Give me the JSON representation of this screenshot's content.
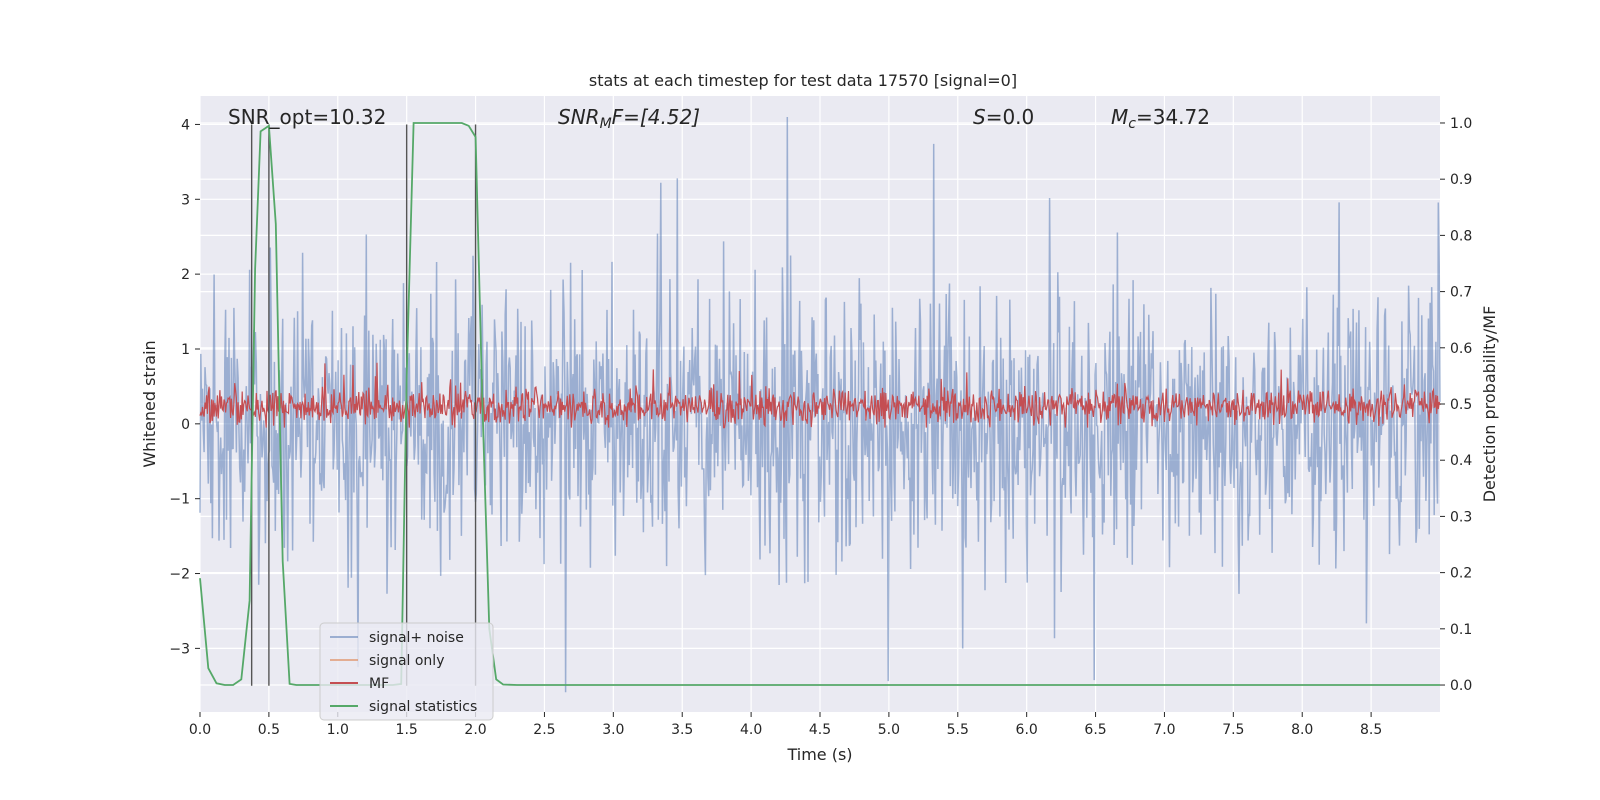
{
  "chart_data": {
    "type": "line",
    "title": "stats at each timestep for test data 17570 [signal=0]",
    "xlabel": "Time (s)",
    "ylabel": "Whitened strain",
    "y2label": "Detection probability/MF",
    "xlim": [
      0,
      9.0
    ],
    "ylim": [
      -3.85,
      4.38
    ],
    "y2lim": [
      -0.048,
      1.048
    ],
    "xticks": [
      "0.0",
      "0.5",
      "1.0",
      "1.5",
      "2.0",
      "2.5",
      "3.0",
      "3.5",
      "4.0",
      "4.5",
      "5.0",
      "5.5",
      "6.0",
      "6.5",
      "7.0",
      "7.5",
      "8.0",
      "8.5"
    ],
    "xtick_values": [
      0,
      0.5,
      1,
      1.5,
      2,
      2.5,
      3,
      3.5,
      4,
      4.5,
      5,
      5.5,
      6,
      6.5,
      7,
      7.5,
      8,
      8.5
    ],
    "yticks": [
      "4",
      "3",
      "2",
      "1",
      "0",
      "−1",
      "−2",
      "−3"
    ],
    "ytick_values": [
      4,
      3,
      2,
      1,
      0,
      -1,
      -2,
      -3
    ],
    "y2ticks": [
      "1.0",
      "0.9",
      "0.8",
      "0.7",
      "0.6",
      "0.5",
      "0.4",
      "0.3",
      "0.2",
      "0.1",
      "0.0"
    ],
    "y2tick_values": [
      1.0,
      0.9,
      0.8,
      0.7,
      0.6,
      0.5,
      0.4,
      0.3,
      0.2,
      0.1,
      0.0
    ],
    "annotations": {
      "snr_opt": "SNR_opt=10.32",
      "snr_mf_main": "SNR",
      "snr_mf_sub": "M",
      "snr_mf_rest": "F=[4.52]",
      "s_main": "S",
      "s_rest": "=0.0",
      "mc_main": "M",
      "mc_sub": "c",
      "mc_rest": "=34.72"
    },
    "series": [
      {
        "name": "signal+ noise",
        "color": "#4c72b0",
        "note": "whitened strain noise, amplitude approx ±1.5 with peaks to ±4"
      },
      {
        "name": "signal only",
        "color": "#dd8452",
        "values_note": "zero signal"
      },
      {
        "name": "MF",
        "color": "#c44e52",
        "note": "matched filter output around 0.25"
      },
      {
        "name": "signal statistics",
        "color": "#55a868",
        "x": [
          0.0,
          0.06,
          0.12,
          0.18,
          0.24,
          0.3,
          0.36,
          0.4,
          0.44,
          0.5,
          0.55,
          0.6,
          0.65,
          0.7,
          1.4,
          1.46,
          1.5,
          1.55,
          1.6,
          1.8,
          1.9,
          1.95,
          2.0,
          2.05,
          2.1,
          2.15,
          2.2,
          2.3,
          9.0
        ],
        "y": [
          0.19,
          0.03,
          0.003,
          0.0,
          0.0,
          0.01,
          0.15,
          0.74,
          0.985,
          0.995,
          0.82,
          0.22,
          0.002,
          0.0,
          0.0,
          0.002,
          0.55,
          1.0,
          1.0,
          1.0,
          1.0,
          0.995,
          0.975,
          0.5,
          0.1,
          0.01,
          0.001,
          0.0,
          0.0
        ]
      }
    ],
    "vlines_x": [
      0.375,
      0.5,
      1.5,
      2.0
    ],
    "legend": {
      "items": [
        "signal+ noise",
        "signal only",
        "MF",
        "signal statistics"
      ],
      "placement": "lower-left"
    }
  }
}
